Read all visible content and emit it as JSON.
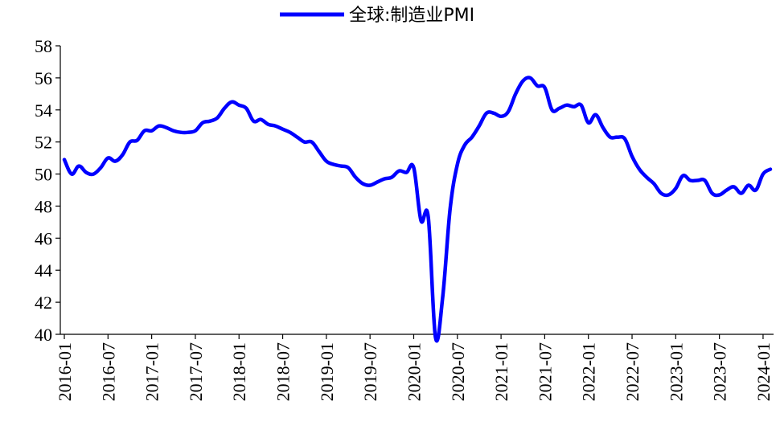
{
  "chart_data": {
    "type": "line",
    "title": "",
    "xlabel": "",
    "ylabel": "",
    "ylim": [
      40,
      58
    ],
    "yticks": [
      40,
      42,
      44,
      46,
      48,
      50,
      52,
      54,
      56,
      58
    ],
    "x_ticks": [
      "2016-01",
      "2016-07",
      "2017-01",
      "2017-07",
      "2018-01",
      "2018-07",
      "2019-01",
      "2019-07",
      "2020-01",
      "2020-07",
      "2021-01",
      "2021-07",
      "2022-01",
      "2022-07",
      "2023-01",
      "2023-07",
      "2024-01"
    ],
    "grid": false,
    "legend_position": "top-center",
    "colors": {
      "line": "#0000ff",
      "axis": "#000000"
    },
    "series": [
      {
        "name": "全球:制造业PMI",
        "x": [
          "2016-01",
          "2016-02",
          "2016-03",
          "2016-04",
          "2016-05",
          "2016-06",
          "2016-07",
          "2016-08",
          "2016-09",
          "2016-10",
          "2016-11",
          "2016-12",
          "2017-01",
          "2017-02",
          "2017-03",
          "2017-04",
          "2017-05",
          "2017-06",
          "2017-07",
          "2017-08",
          "2017-09",
          "2017-10",
          "2017-11",
          "2017-12",
          "2018-01",
          "2018-02",
          "2018-03",
          "2018-04",
          "2018-05",
          "2018-06",
          "2018-07",
          "2018-08",
          "2018-09",
          "2018-10",
          "2018-11",
          "2018-12",
          "2019-01",
          "2019-02",
          "2019-03",
          "2019-04",
          "2019-05",
          "2019-06",
          "2019-07",
          "2019-08",
          "2019-09",
          "2019-10",
          "2019-11",
          "2019-12",
          "2020-01",
          "2020-02",
          "2020-03",
          "2020-04",
          "2020-05",
          "2020-06",
          "2020-07",
          "2020-08",
          "2020-09",
          "2020-10",
          "2020-11",
          "2020-12",
          "2021-01",
          "2021-02",
          "2021-03",
          "2021-04",
          "2021-05",
          "2021-06",
          "2021-07",
          "2021-08",
          "2021-09",
          "2021-10",
          "2021-11",
          "2021-12",
          "2022-01",
          "2022-02",
          "2022-03",
          "2022-04",
          "2022-05",
          "2022-06",
          "2022-07",
          "2022-08",
          "2022-09",
          "2022-10",
          "2022-11",
          "2022-12",
          "2023-01",
          "2023-02",
          "2023-03",
          "2023-04",
          "2023-05",
          "2023-06",
          "2023-07",
          "2023-08",
          "2023-09",
          "2023-10",
          "2023-11",
          "2023-12",
          "2024-01",
          "2024-02"
        ],
        "values": [
          50.9,
          50.0,
          50.5,
          50.1,
          50.0,
          50.4,
          51.0,
          50.8,
          51.2,
          52.0,
          52.1,
          52.7,
          52.7,
          53.0,
          52.9,
          52.7,
          52.6,
          52.6,
          52.7,
          53.2,
          53.3,
          53.5,
          54.1,
          54.5,
          54.3,
          54.1,
          53.3,
          53.4,
          53.1,
          53.0,
          52.8,
          52.6,
          52.3,
          52.0,
          52.0,
          51.4,
          50.8,
          50.6,
          50.5,
          50.4,
          49.8,
          49.4,
          49.3,
          49.5,
          49.7,
          49.8,
          50.2,
          50.1,
          50.4,
          47.1,
          47.3,
          39.8,
          42.4,
          47.8,
          50.6,
          51.8,
          52.3,
          53.0,
          53.8,
          53.8,
          53.6,
          53.9,
          55.0,
          55.8,
          56.0,
          55.5,
          55.4,
          54.0,
          54.1,
          54.3,
          54.2,
          54.3,
          53.2,
          53.7,
          52.9,
          52.3,
          52.3,
          52.2,
          51.1,
          50.3,
          49.8,
          49.4,
          48.8,
          48.7,
          49.1,
          49.9,
          49.6,
          49.6,
          49.6,
          48.8,
          48.7,
          49.0,
          49.2,
          48.8,
          49.3,
          49.0,
          50.0,
          50.3
        ]
      }
    ]
  }
}
